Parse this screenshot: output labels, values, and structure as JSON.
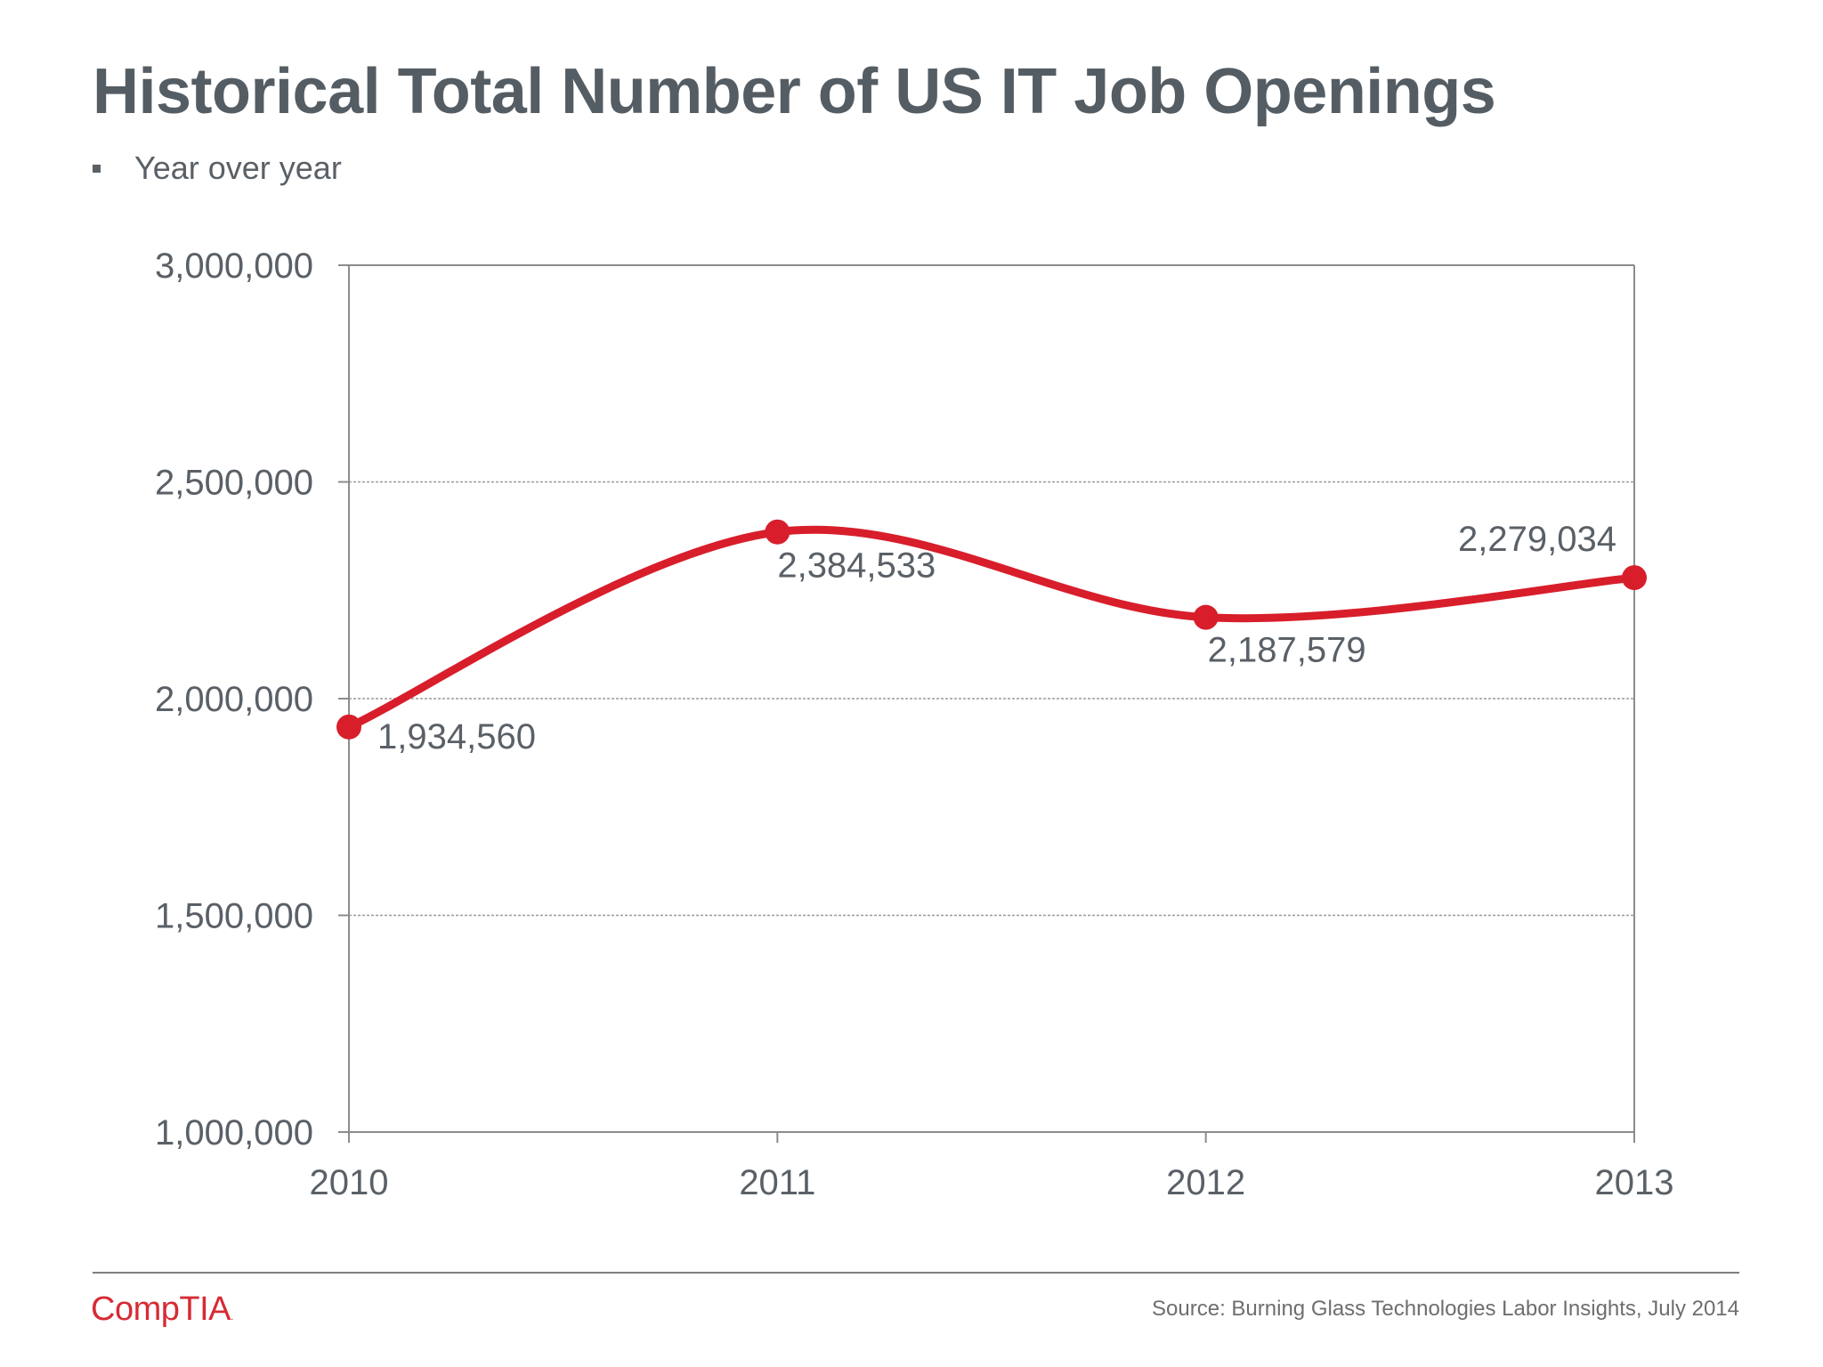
{
  "slide": {
    "title": "Historical Total Number of US IT Job Openings",
    "bullet": "Year over year",
    "source": "Source: Burning Glass Technologies Labor Insights, July 2014",
    "logo": "CompTIA",
    "logo_mark": "."
  },
  "colors": {
    "line": "#d81e2b",
    "text": "#5a6067",
    "axis": "#8c8c8c",
    "grid": "#9a9a9a"
  },
  "chart_data": {
    "type": "line",
    "title": "",
    "xlabel": "",
    "ylabel": "",
    "categories": [
      "2010",
      "2011",
      "2012",
      "2013"
    ],
    "series": [
      {
        "values": [
          1934560,
          2384533,
          2187579,
          2279034
        ],
        "data_labels": [
          "1,934,560",
          "2,384,533",
          "2,187,579",
          "2,279,034"
        ]
      }
    ],
    "ylim": [
      1000000,
      3000000
    ],
    "y_ticks": [
      1000000,
      1500000,
      2000000,
      2500000,
      3000000
    ],
    "y_tick_labels": [
      "1,000,000",
      "1,500,000",
      "2,000,000",
      "2,500,000",
      "3,000,000"
    ],
    "smooth": true,
    "markers": true,
    "grid": "horizontal dashed",
    "legend": "none"
  }
}
